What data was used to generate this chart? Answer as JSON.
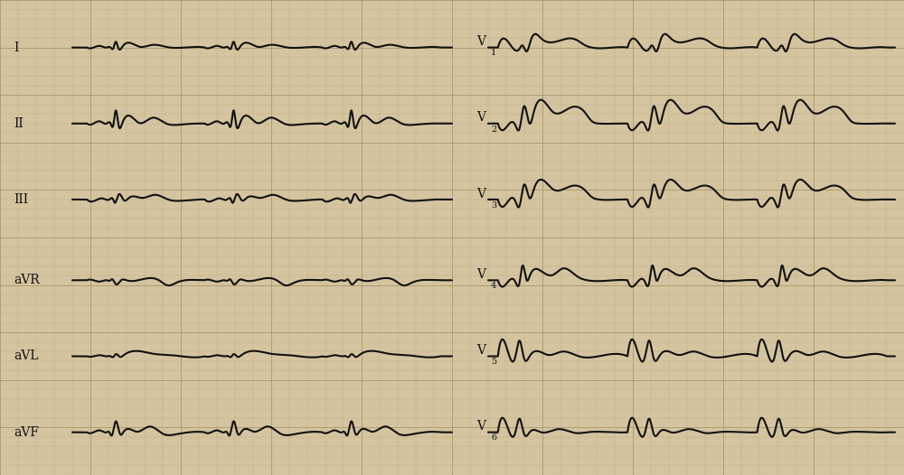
{
  "background_color": "#d4c4a0",
  "grid_minor_color": "#b8a882",
  "grid_major_color": "#a89868",
  "line_color": "#111111",
  "line_width": 1.5,
  "fig_width": 10.0,
  "fig_height": 5.26,
  "dpi": 100,
  "leads_left": [
    "I",
    "II",
    "III",
    "aVR",
    "aVL",
    "aVF"
  ],
  "leads_right": [
    "V1",
    "V2",
    "V3",
    "V4",
    "V5",
    "V6"
  ],
  "label_fontsize": 10
}
